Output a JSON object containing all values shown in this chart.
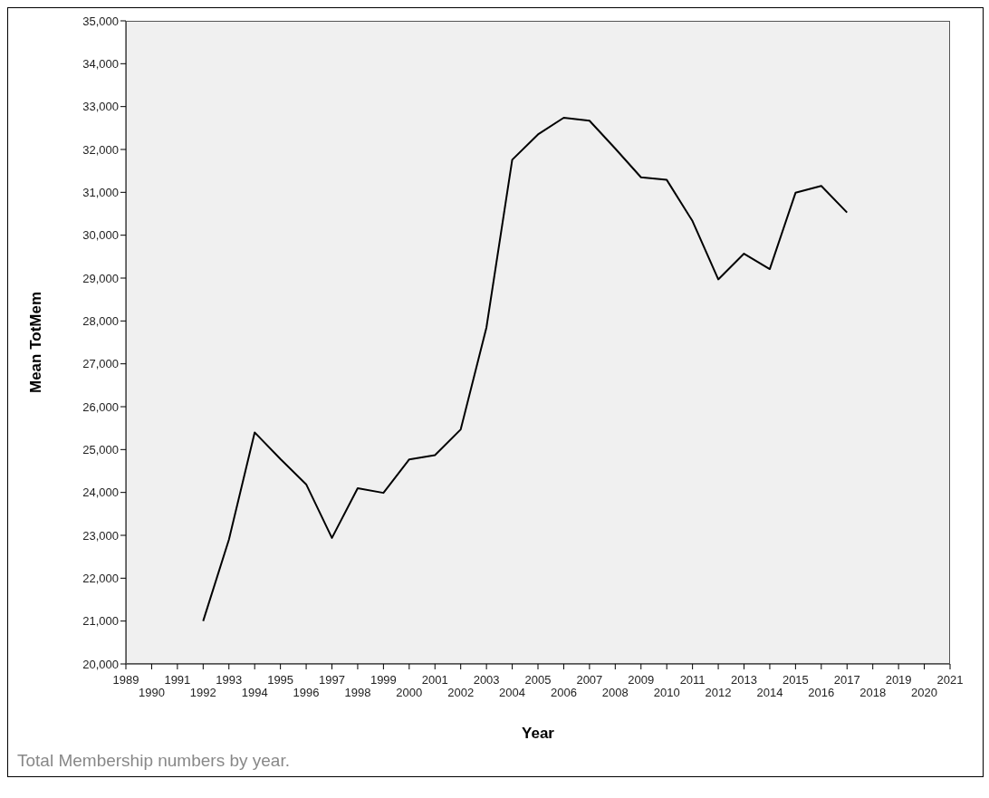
{
  "chart_data": {
    "type": "line",
    "xlabel": "Year",
    "ylabel": "Mean TotMem",
    "categories": [
      "1989",
      "1990",
      "1991",
      "1992",
      "1993",
      "1994",
      "1995",
      "1996",
      "1997",
      "1998",
      "1999",
      "2000",
      "2001",
      "2002",
      "2003",
      "2004",
      "2005",
      "2006",
      "2007",
      "2008",
      "2009",
      "2010",
      "2011",
      "2012",
      "2013",
      "2014",
      "2015",
      "2016",
      "2017",
      "2018",
      "2019",
      "2020",
      "2021"
    ],
    "series": [
      {
        "color": "#000000",
        "values": [
          null,
          null,
          null,
          21000,
          22900,
          25400,
          24780,
          24190,
          22940,
          24100,
          23990,
          24770,
          24870,
          25470,
          27850,
          31760,
          32350,
          32740,
          32670,
          32020,
          31350,
          31290,
          30330,
          28970,
          29570,
          29210,
          30990,
          31150,
          30530,
          null,
          null,
          null,
          null
        ]
      }
    ],
    "ylim": [
      20000,
      35000
    ],
    "yticks": [
      {
        "value": 20000,
        "label": "20,000"
      },
      {
        "value": 21000,
        "label": "21,000"
      },
      {
        "value": 22000,
        "label": "22,000"
      },
      {
        "value": 23000,
        "label": "23,000"
      },
      {
        "value": 24000,
        "label": "24,000"
      },
      {
        "value": 25000,
        "label": "25,000"
      },
      {
        "value": 26000,
        "label": "26,000"
      },
      {
        "value": 27000,
        "label": "27,000"
      },
      {
        "value": 28000,
        "label": "28,000"
      },
      {
        "value": 29000,
        "label": "29,000"
      },
      {
        "value": 30000,
        "label": "30,000"
      },
      {
        "value": 31000,
        "label": "31,000"
      },
      {
        "value": 32000,
        "label": "32,000"
      },
      {
        "value": 33000,
        "label": "33,000"
      },
      {
        "value": 34000,
        "label": "34,000"
      },
      {
        "value": 35000,
        "label": "35,000"
      }
    ],
    "grid": false,
    "legend": false,
    "marker": "none",
    "line_style": "solid",
    "annotations": [
      "Total Membership numbers by year."
    ]
  }
}
